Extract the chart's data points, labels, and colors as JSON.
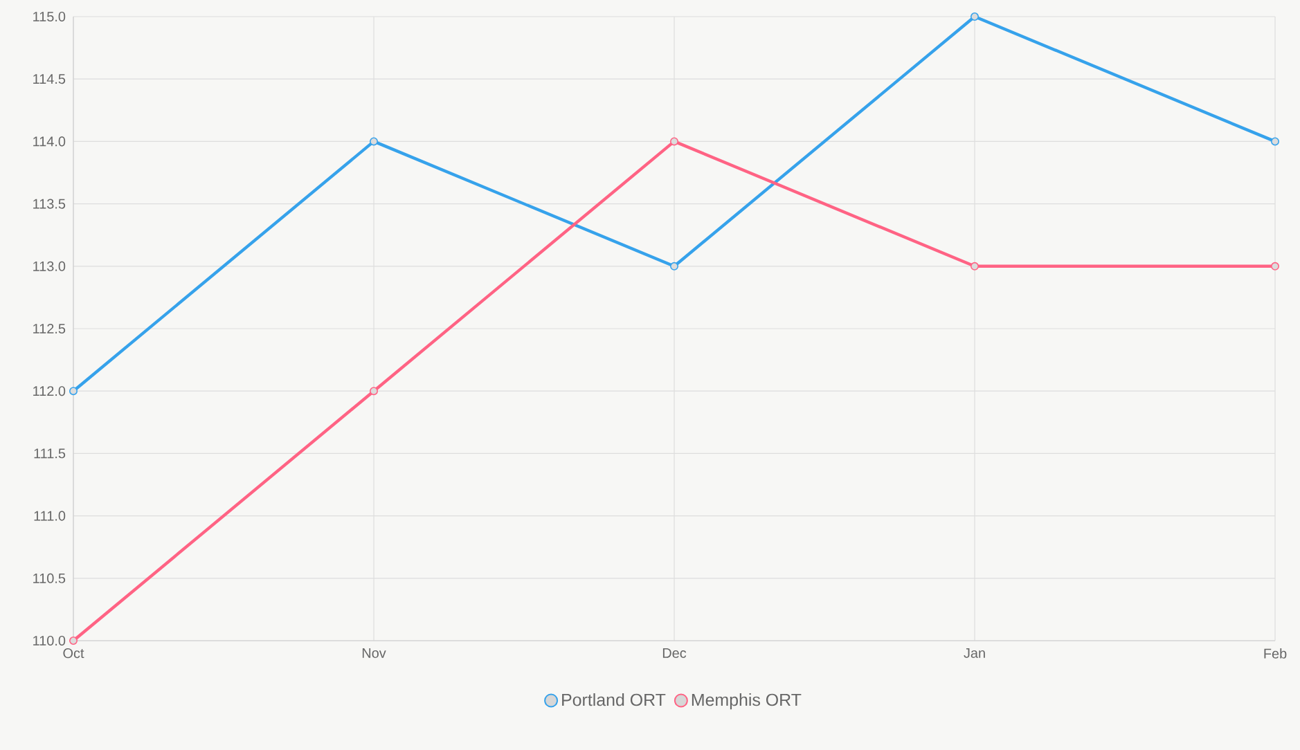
{
  "chart_data": {
    "type": "line",
    "categories": [
      "Oct",
      "Nov",
      "Dec",
      "Jan",
      "Feb"
    ],
    "series": [
      {
        "name": "Portland ORT",
        "color": "#36a2eb",
        "values": [
          112,
          114,
          113,
          115,
          114
        ]
      },
      {
        "name": "Memphis ORT",
        "color": "#ff6384",
        "values": [
          110,
          112,
          114,
          113,
          113
        ]
      }
    ],
    "ylim": [
      110,
      115
    ],
    "yticks": [
      {
        "value": 110,
        "label": "110.0"
      },
      {
        "value": 110.5,
        "label": "110.5"
      },
      {
        "value": 111,
        "label": "111.0"
      },
      {
        "value": 111.5,
        "label": "111.5"
      },
      {
        "value": 112,
        "label": "112.0"
      },
      {
        "value": 112.5,
        "label": "112.5"
      },
      {
        "value": 113,
        "label": "113.0"
      },
      {
        "value": 113.5,
        "label": "113.5"
      },
      {
        "value": 114,
        "label": "114.0"
      },
      {
        "value": 114.5,
        "label": "114.5"
      },
      {
        "value": 115,
        "label": "115.0"
      }
    ],
    "grid": true,
    "legend": "bottom",
    "marker": "circle",
    "line_style": "solid"
  }
}
